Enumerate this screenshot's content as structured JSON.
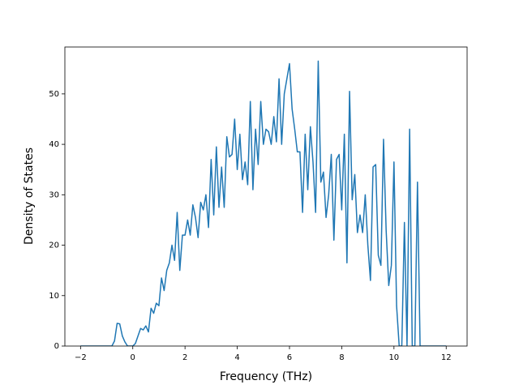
{
  "chart_data": {
    "type": "line",
    "xlabel": "Frequency (THz)",
    "ylabel": "Density of States",
    "x": [
      -2.0,
      -1.9,
      -1.8,
      -1.7,
      -1.6,
      -1.5,
      -1.4,
      -1.3,
      -1.2,
      -1.1,
      -1.0,
      -0.9,
      -0.8,
      -0.7,
      -0.6,
      -0.5,
      -0.4,
      -0.3,
      -0.2,
      -0.1,
      0.0,
      0.1,
      0.2,
      0.3,
      0.4,
      0.5,
      0.6,
      0.7,
      0.8,
      0.9,
      1.0,
      1.1,
      1.2,
      1.3,
      1.4,
      1.5,
      1.6,
      1.7,
      1.8,
      1.9,
      2.0,
      2.1,
      2.2,
      2.3,
      2.4,
      2.5,
      2.6,
      2.7,
      2.8,
      2.9,
      3.0,
      3.1,
      3.2,
      3.3,
      3.4,
      3.5,
      3.6,
      3.7,
      3.8,
      3.9,
      4.0,
      4.1,
      4.2,
      4.3,
      4.4,
      4.5,
      4.6,
      4.7,
      4.8,
      4.9,
      5.0,
      5.1,
      5.2,
      5.3,
      5.4,
      5.5,
      5.6,
      5.7,
      5.8,
      5.9,
      6.0,
      6.1,
      6.2,
      6.3,
      6.4,
      6.5,
      6.6,
      6.7,
      6.8,
      6.9,
      7.0,
      7.1,
      7.2,
      7.3,
      7.4,
      7.5,
      7.6,
      7.7,
      7.8,
      7.9,
      8.0,
      8.1,
      8.2,
      8.3,
      8.4,
      8.5,
      8.6,
      8.7,
      8.8,
      8.9,
      9.0,
      9.1,
      9.2,
      9.3,
      9.4,
      9.5,
      9.6,
      9.7,
      9.8,
      9.9,
      10.0,
      10.1,
      10.2,
      10.3,
      10.4,
      10.5,
      10.6,
      10.7,
      10.8,
      10.9,
      11.0,
      11.1,
      11.2,
      11.3,
      11.4,
      11.5,
      11.6,
      11.7,
      11.8,
      11.9,
      12.0
    ],
    "series": [
      {
        "color": "#1f77b4",
        "values": [
          0,
          0,
          0,
          0,
          0,
          0,
          0,
          0,
          0,
          0,
          0,
          0,
          0,
          1,
          4.5,
          4.4,
          2,
          0.8,
          0,
          0,
          0,
          0.5,
          2,
          3.5,
          3.2,
          4,
          2.8,
          7.5,
          6.5,
          8.5,
          8,
          13.5,
          11,
          15,
          16.5,
          20,
          17,
          26.5,
          15,
          22,
          22,
          25,
          22,
          28,
          25.5,
          21.5,
          28.5,
          27,
          30,
          23.5,
          37,
          26,
          39.5,
          27.5,
          35.5,
          27.5,
          41.5,
          37.5,
          38,
          45,
          35,
          42,
          33,
          36.5,
          32,
          48.5,
          31,
          43,
          36,
          48.5,
          40,
          43,
          42.5,
          40,
          45.5,
          40.5,
          53,
          40,
          50,
          53,
          56,
          47,
          43,
          38.5,
          38.5,
          26.5,
          42,
          31,
          43.5,
          36.5,
          26.5,
          56.5,
          32.5,
          34.5,
          25.5,
          30,
          38,
          21,
          37,
          38,
          27,
          42,
          16.5,
          50.5,
          29,
          34,
          22.5,
          26,
          22.5,
          30,
          20,
          13,
          35.5,
          36,
          18,
          16,
          41,
          23,
          12,
          16,
          36.5,
          8,
          0,
          0,
          24.5,
          0,
          43,
          0,
          0,
          32.5,
          0,
          0,
          0,
          0,
          0,
          0,
          0,
          0,
          0,
          0,
          0
        ]
      }
    ],
    "xlim": [
      -2.6,
      12.8
    ],
    "ylim": [
      0,
      59.3
    ],
    "xticks": [
      {
        "value": -2,
        "label": "−2"
      },
      0,
      2,
      4,
      6,
      8,
      10,
      12
    ],
    "yticks": [
      0,
      10,
      20,
      30,
      40,
      50
    ]
  }
}
